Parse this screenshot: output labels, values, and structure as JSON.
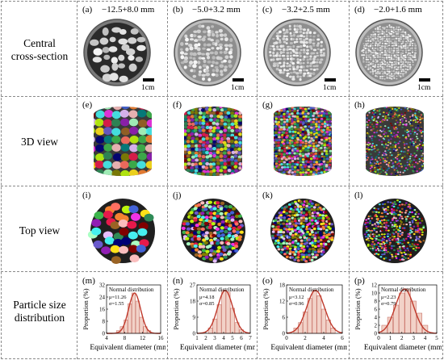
{
  "row_labels": {
    "cross_section": [
      "Central",
      "cross-section"
    ],
    "view3d": "3D view",
    "top": "Top view",
    "psd": [
      "Particle size",
      "distribution"
    ]
  },
  "columns": [
    {
      "size": "−12.5+8.0 mm",
      "labels": [
        "(a)",
        "(e)",
        "(i)",
        "(m)"
      ],
      "scale": "1cm",
      "particle_color": "#cfcfcf"
    },
    {
      "size": "−5.0+3.2 mm",
      "labels": [
        "(b)",
        "(f)",
        "(j)",
        "(n)"
      ],
      "scale": "1cm",
      "particle_color": "#e6e6e6"
    },
    {
      "size": "−3.2+2.5 mm",
      "labels": [
        "(c)",
        "(g)",
        "(k)",
        "(o)"
      ],
      "scale": "1cm",
      "particle_color": "#dddddd"
    },
    {
      "size": "−2.0+1.6 mm",
      "labels": [
        "(d)",
        "(h)",
        "(l)",
        "(p)"
      ],
      "scale": "1cm",
      "particle_color": "#ececec"
    }
  ],
  "chart_common": {
    "ylabel": "Proportion (%)",
    "xlabel": "Equivalent diameter (mm)",
    "legend": "Normal distribution"
  },
  "chart_data": [
    {
      "type": "bar",
      "panel": "(m)",
      "x": [
        7,
        8,
        9,
        10,
        11,
        12,
        13,
        14,
        15
      ],
      "values": [
        2,
        5,
        10,
        22,
        30,
        24,
        12,
        5,
        2
      ],
      "fit": {
        "mu": 11.26,
        "sigma": 1.55
      },
      "mu_label": "μ=11.26",
      "sigma_label": "σ=1.55",
      "xlim": [
        4,
        18
      ],
      "xticks": [
        "4",
        "8",
        "12",
        "16"
      ],
      "ylim": [
        0,
        36
      ],
      "yticks": [
        "0",
        "8",
        "16",
        "24",
        "32"
      ]
    },
    {
      "type": "bar",
      "panel": "(n)",
      "x": [
        2.5,
        3,
        3.5,
        4,
        4.5,
        5,
        5.5,
        6
      ],
      "values": [
        3,
        8,
        16,
        24,
        23,
        14,
        6,
        2
      ],
      "fit": {
        "mu": 4.18,
        "sigma": 0.85
      },
      "mu_label": "μ=4.18",
      "sigma_label": "σ=0.85",
      "xlim": [
        1,
        7
      ],
      "xticks": [
        "1",
        "2",
        "3",
        "4",
        "5",
        "6",
        "7"
      ],
      "ylim": [
        0,
        27
      ],
      "yticks": [
        "0",
        "9",
        "18",
        "27"
      ]
    },
    {
      "type": "bar",
      "panel": "(o)",
      "x": [
        1,
        1.5,
        2,
        2.5,
        3,
        3.5,
        4,
        4.5,
        5
      ],
      "values": [
        2,
        4,
        8,
        13,
        16,
        14,
        9,
        5,
        2
      ],
      "fit": {
        "mu": 3.12,
        "sigma": 0.96
      },
      "mu_label": "μ=3.12",
      "sigma_label": "σ=0.96",
      "xlim": [
        0,
        6
      ],
      "xticks": [
        "0",
        "2",
        "4",
        "6"
      ],
      "ylim": [
        0,
        18
      ],
      "yticks": [
        "0",
        "6",
        "12",
        "18"
      ]
    },
    {
      "type": "bar",
      "panel": "(p)",
      "x": [
        0.5,
        1,
        1.5,
        2,
        2.5,
        3,
        3.5,
        4
      ],
      "values": [
        2,
        4,
        7,
        10,
        11,
        8,
        5,
        2
      ],
      "fit": {
        "mu": 2.23,
        "sigma": 0.79
      },
      "mu_label": "μ=2.23",
      "sigma_label": "σ=0.79",
      "xlim": [
        0,
        5
      ],
      "xticks": [
        "0",
        "1",
        "2",
        "3",
        "4",
        "5"
      ],
      "ylim": [
        0,
        12
      ],
      "yticks": [
        "0",
        "2",
        "4",
        "6",
        "8",
        "10",
        "12"
      ]
    }
  ],
  "colors": {
    "bar_fill": "#f2d2c8",
    "bar_stroke": "#c9746a",
    "fit_line": "#c0392b",
    "cyl_dark": "#3a3a3a"
  }
}
